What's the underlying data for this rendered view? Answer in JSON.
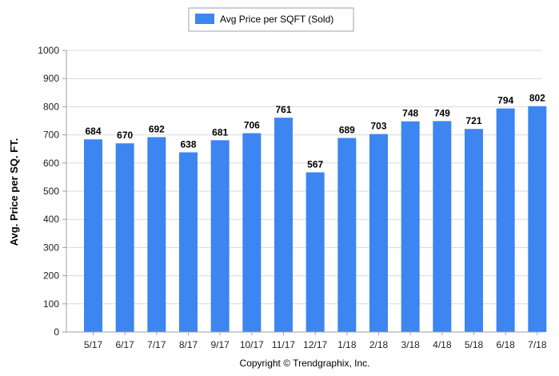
{
  "chart_data": {
    "type": "bar",
    "categories": [
      "5/17",
      "6/17",
      "7/17",
      "8/17",
      "9/17",
      "10/17",
      "11/17",
      "12/17",
      "1/18",
      "2/18",
      "3/18",
      "4/18",
      "5/18",
      "6/18",
      "7/18"
    ],
    "series": [
      {
        "name": "Avg Price per SQFT (Sold)",
        "values": [
          684,
          670,
          692,
          638,
          681,
          706,
          761,
          567,
          689,
          703,
          748,
          749,
          721,
          794,
          802
        ]
      }
    ],
    "ylabel": "Avg. Price per SQ. FT.",
    "xlabel": "",
    "ylim": [
      0,
      1000
    ],
    "yticks": [
      0,
      100,
      200,
      300,
      400,
      500,
      600,
      700,
      800,
      900,
      1000
    ],
    "grid": true,
    "legend_position": "top-center",
    "data_labels": true,
    "bar_color": "#3D85F1"
  },
  "footer": {
    "copyright": "Copyright © Trendgraphix, Inc."
  }
}
